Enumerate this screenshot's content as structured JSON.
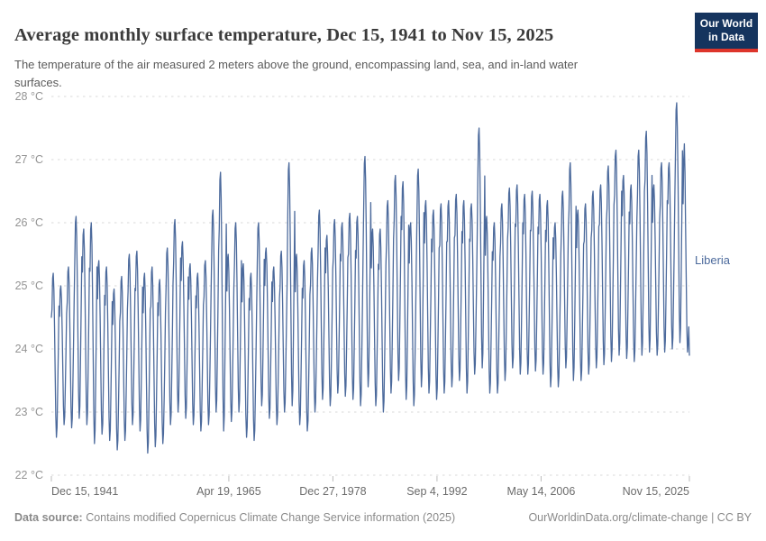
{
  "header": {
    "title": "Average monthly surface temperature, Dec 15, 1941 to Nov 15, 2025",
    "subtitle": "The temperature of the air measured 2 meters above the ground, encompassing land, sea, and in-land water surfaces.",
    "logo": {
      "line1": "Our World",
      "line2": "in Data",
      "bg_color": "#15345e",
      "accent_color": "#dd352b"
    }
  },
  "chart_data": {
    "type": "line",
    "title": "Average monthly surface temperature, Dec 15, 1941 to Nov 15, 2025",
    "entity": "Liberia",
    "unit": "°C",
    "line_color": "#4C6A9C",
    "grid": true,
    "legend_position": "end-of-line",
    "ylim": [
      22,
      28
    ],
    "y_ticks": [
      {
        "value": 28,
        "label": "28 °C"
      },
      {
        "value": 27,
        "label": "27 °C"
      },
      {
        "value": 26,
        "label": "26 °C"
      },
      {
        "value": 25,
        "label": "25 °C"
      },
      {
        "value": 24,
        "label": "24 °C"
      },
      {
        "value": 23,
        "label": "23 °C"
      },
      {
        "value": 22,
        "label": "22 °C"
      }
    ],
    "x_range": [
      1941.958,
      2025.874
    ],
    "x_ticks": [
      {
        "label": "Dec 15, 1941",
        "t": 1941.958,
        "align": "left"
      },
      {
        "label": "Apr 19, 1965",
        "t": 1965.298,
        "align": "center"
      },
      {
        "label": "Dec 27, 1978",
        "t": 1978.988,
        "align": "center"
      },
      {
        "label": "Sep 4, 1992",
        "t": 1992.678,
        "align": "center"
      },
      {
        "label": "May 14, 2006",
        "t": 2006.367,
        "align": "center"
      },
      {
        "label": "Nov 15, 2025",
        "t": 2025.874,
        "align": "right"
      }
    ],
    "first_point": {
      "t": 1941.958,
      "value": 24.5
    },
    "start_year": 1942,
    "seasonal_shape": [
      0.78,
      0.97,
      1.0,
      0.9,
      0.68,
      0.4,
      0.13,
      0.0,
      0.06,
      0.28,
      0.52,
      0.8
    ],
    "annual_peak": [
      25.2,
      25.0,
      25.3,
      26.1,
      25.9,
      26.0,
      25.4,
      25.3,
      24.95,
      25.15,
      25.5,
      25.55,
      25.2,
      25.3,
      25.1,
      25.6,
      26.05,
      25.7,
      25.35,
      25.2,
      25.4,
      26.2,
      26.8,
      25.5,
      26.0,
      25.35,
      25.2,
      26.0,
      25.6,
      25.3,
      25.55,
      26.95,
      25.5,
      25.4,
      25.6,
      26.2,
      25.8,
      26.05,
      26.0,
      26.15,
      26.1,
      27.05,
      25.9,
      25.9,
      26.35,
      26.75,
      26.65,
      26.0,
      26.85,
      26.35,
      26.2,
      26.3,
      26.35,
      26.45,
      26.35,
      26.3,
      27.5,
      26.1,
      26.0,
      26.3,
      26.55,
      26.6,
      26.45,
      26.5,
      26.45,
      26.35,
      26.0,
      26.5,
      26.95,
      26.2,
      26.3,
      26.5,
      26.6,
      26.9,
      27.15,
      26.75,
      26.6,
      27.15,
      27.45,
      26.6,
      26.95,
      26.95,
      27.9
    ],
    "annual_trough": [
      22.6,
      22.8,
      22.75,
      22.9,
      22.8,
      22.5,
      22.65,
      22.55,
      22.4,
      22.55,
      22.8,
      22.7,
      22.35,
      22.45,
      22.5,
      22.8,
      23.0,
      22.9,
      22.8,
      22.7,
      22.8,
      23.0,
      22.7,
      22.85,
      23.0,
      22.6,
      22.55,
      23.1,
      22.9,
      22.8,
      23.0,
      23.1,
      22.8,
      22.7,
      23.0,
      23.2,
      23.1,
      23.3,
      23.25,
      23.2,
      23.1,
      23.4,
      23.1,
      23.0,
      23.3,
      23.5,
      23.2,
      23.1,
      23.4,
      23.3,
      23.2,
      23.3,
      23.4,
      23.5,
      23.3,
      23.6,
      23.7,
      23.3,
      23.3,
      23.5,
      23.7,
      23.6,
      23.6,
      23.65,
      23.6,
      23.4,
      23.4,
      23.7,
      23.5,
      23.5,
      23.6,
      23.7,
      23.75,
      23.8,
      23.9,
      23.85,
      23.8,
      23.9,
      23.95,
      23.9,
      23.95,
      24.0,
      24.1
    ],
    "final_year": {
      "year": 2025,
      "months": "Jan-Nov",
      "monthly_values": [
        26.3,
        27.0,
        27.25,
        26.8,
        25.9,
        25.1,
        24.3,
        23.95,
        24.1,
        24.35,
        23.9
      ]
    }
  },
  "footer": {
    "data_source_label": "Data source:",
    "data_source_text": " Contains modified Copernicus Climate Change Service information (2025)",
    "link_text": "OurWorldinData.org/climate-change | CC BY"
  }
}
